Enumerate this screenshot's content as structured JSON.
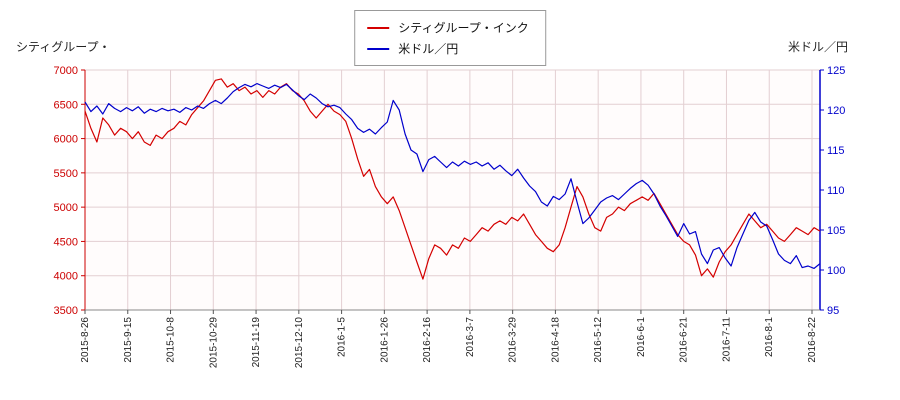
{
  "header": {
    "left_axis_title": "シティグループ・",
    "right_axis_title": "米ドル／円"
  },
  "legend": {
    "items": [
      {
        "label": "シティグループ・インク",
        "color": "#d40000"
      },
      {
        "label": "米ドル／円",
        "color": "#0000cc"
      }
    ]
  },
  "chart_data": {
    "type": "line",
    "title": "",
    "grid": true,
    "grid_color": "#e3cfd2",
    "plot_bg": "#fffcfc",
    "x_tick_labels": [
      "2015-8-26",
      "2015-9-15",
      "2015-10-8",
      "2015-10-29",
      "2015-11-19",
      "2015-12-10",
      "2016-1-5",
      "2016-1-26",
      "2016-2-16",
      "2016-3-7",
      "2016-3-29",
      "2016-4-18",
      "2016-5-12",
      "2016-6-1",
      "2016-6-21",
      "2016-7-11",
      "2016-8-1",
      "2016-8-22"
    ],
    "left_axis": {
      "min": 3500,
      "max": 7000,
      "ticks": [
        7000,
        6500,
        6000,
        5500,
        5000,
        4500,
        4000,
        3500
      ],
      "color": "#cc0000"
    },
    "right_axis": {
      "min": 95,
      "max": 125,
      "ticks": [
        125,
        120,
        115,
        110,
        105,
        100,
        95
      ],
      "color": "#0000cc"
    },
    "series": [
      {
        "id": "citigroup-line",
        "name": "シティグループ・インク",
        "axis": "left",
        "color": "#d40000",
        "values": [
          6400,
          6150,
          5950,
          6300,
          6200,
          6050,
          6150,
          6100,
          6000,
          6100,
          5950,
          5900,
          6050,
          6000,
          6100,
          6150,
          6250,
          6200,
          6350,
          6450,
          6550,
          6700,
          6850,
          6870,
          6750,
          6800,
          6700,
          6750,
          6650,
          6700,
          6600,
          6700,
          6650,
          6750,
          6800,
          6700,
          6650,
          6550,
          6400,
          6300,
          6400,
          6500,
          6400,
          6350,
          6250,
          6000,
          5700,
          5450,
          5550,
          5300,
          5150,
          5050,
          5150,
          4950,
          4700,
          4450,
          4200,
          3950,
          4250,
          4450,
          4400,
          4300,
          4450,
          4400,
          4550,
          4500,
          4600,
          4700,
          4650,
          4750,
          4800,
          4750,
          4850,
          4800,
          4900,
          4750,
          4600,
          4500,
          4400,
          4350,
          4450,
          4700,
          5000,
          5300,
          5150,
          4900,
          4700,
          4650,
          4850,
          4900,
          5000,
          4950,
          5050,
          5100,
          5150,
          5100,
          5200,
          5050,
          4900,
          4750,
          4600,
          4500,
          4450,
          4300,
          4000,
          4100,
          3980,
          4200,
          4350,
          4450,
          4600,
          4750,
          4900,
          4800,
          4700,
          4750,
          4650,
          4550,
          4500,
          4600,
          4700,
          4650,
          4600,
          4700,
          4650
        ]
      },
      {
        "id": "usdjpy-line",
        "name": "米ドル／円",
        "axis": "right",
        "color": "#0000cc",
        "values": [
          121.0,
          119.8,
          120.5,
          119.5,
          120.8,
          120.2,
          119.8,
          120.3,
          119.9,
          120.4,
          119.6,
          120.1,
          119.8,
          120.2,
          119.9,
          120.1,
          119.7,
          120.3,
          120.0,
          120.5,
          120.2,
          120.8,
          121.2,
          120.8,
          121.5,
          122.3,
          122.8,
          123.2,
          122.9,
          123.3,
          123.0,
          122.7,
          123.1,
          122.8,
          123.2,
          122.5,
          121.8,
          121.3,
          122.0,
          121.5,
          120.8,
          120.4,
          120.6,
          120.3,
          119.5,
          118.8,
          117.7,
          117.2,
          117.6,
          117.0,
          117.8,
          118.5,
          121.2,
          120.0,
          117.0,
          115.0,
          114.5,
          112.3,
          113.8,
          114.2,
          113.5,
          112.8,
          113.5,
          113.0,
          113.6,
          113.2,
          113.5,
          113.0,
          113.4,
          112.6,
          113.1,
          112.4,
          111.8,
          112.6,
          111.5,
          110.5,
          109.8,
          108.5,
          108.0,
          109.2,
          108.8,
          109.5,
          111.4,
          108.5,
          105.8,
          106.5,
          107.5,
          108.5,
          109.0,
          109.3,
          108.8,
          109.5,
          110.2,
          110.8,
          111.2,
          110.6,
          109.5,
          108.0,
          106.8,
          105.5,
          104.2,
          105.8,
          104.5,
          104.8,
          102.0,
          100.8,
          102.5,
          102.8,
          101.5,
          100.5,
          102.8,
          104.5,
          106.2,
          107.2,
          106.0,
          105.5,
          103.8,
          102.0,
          101.2,
          100.8,
          101.8,
          100.3,
          100.5,
          100.2,
          100.8
        ]
      }
    ]
  }
}
